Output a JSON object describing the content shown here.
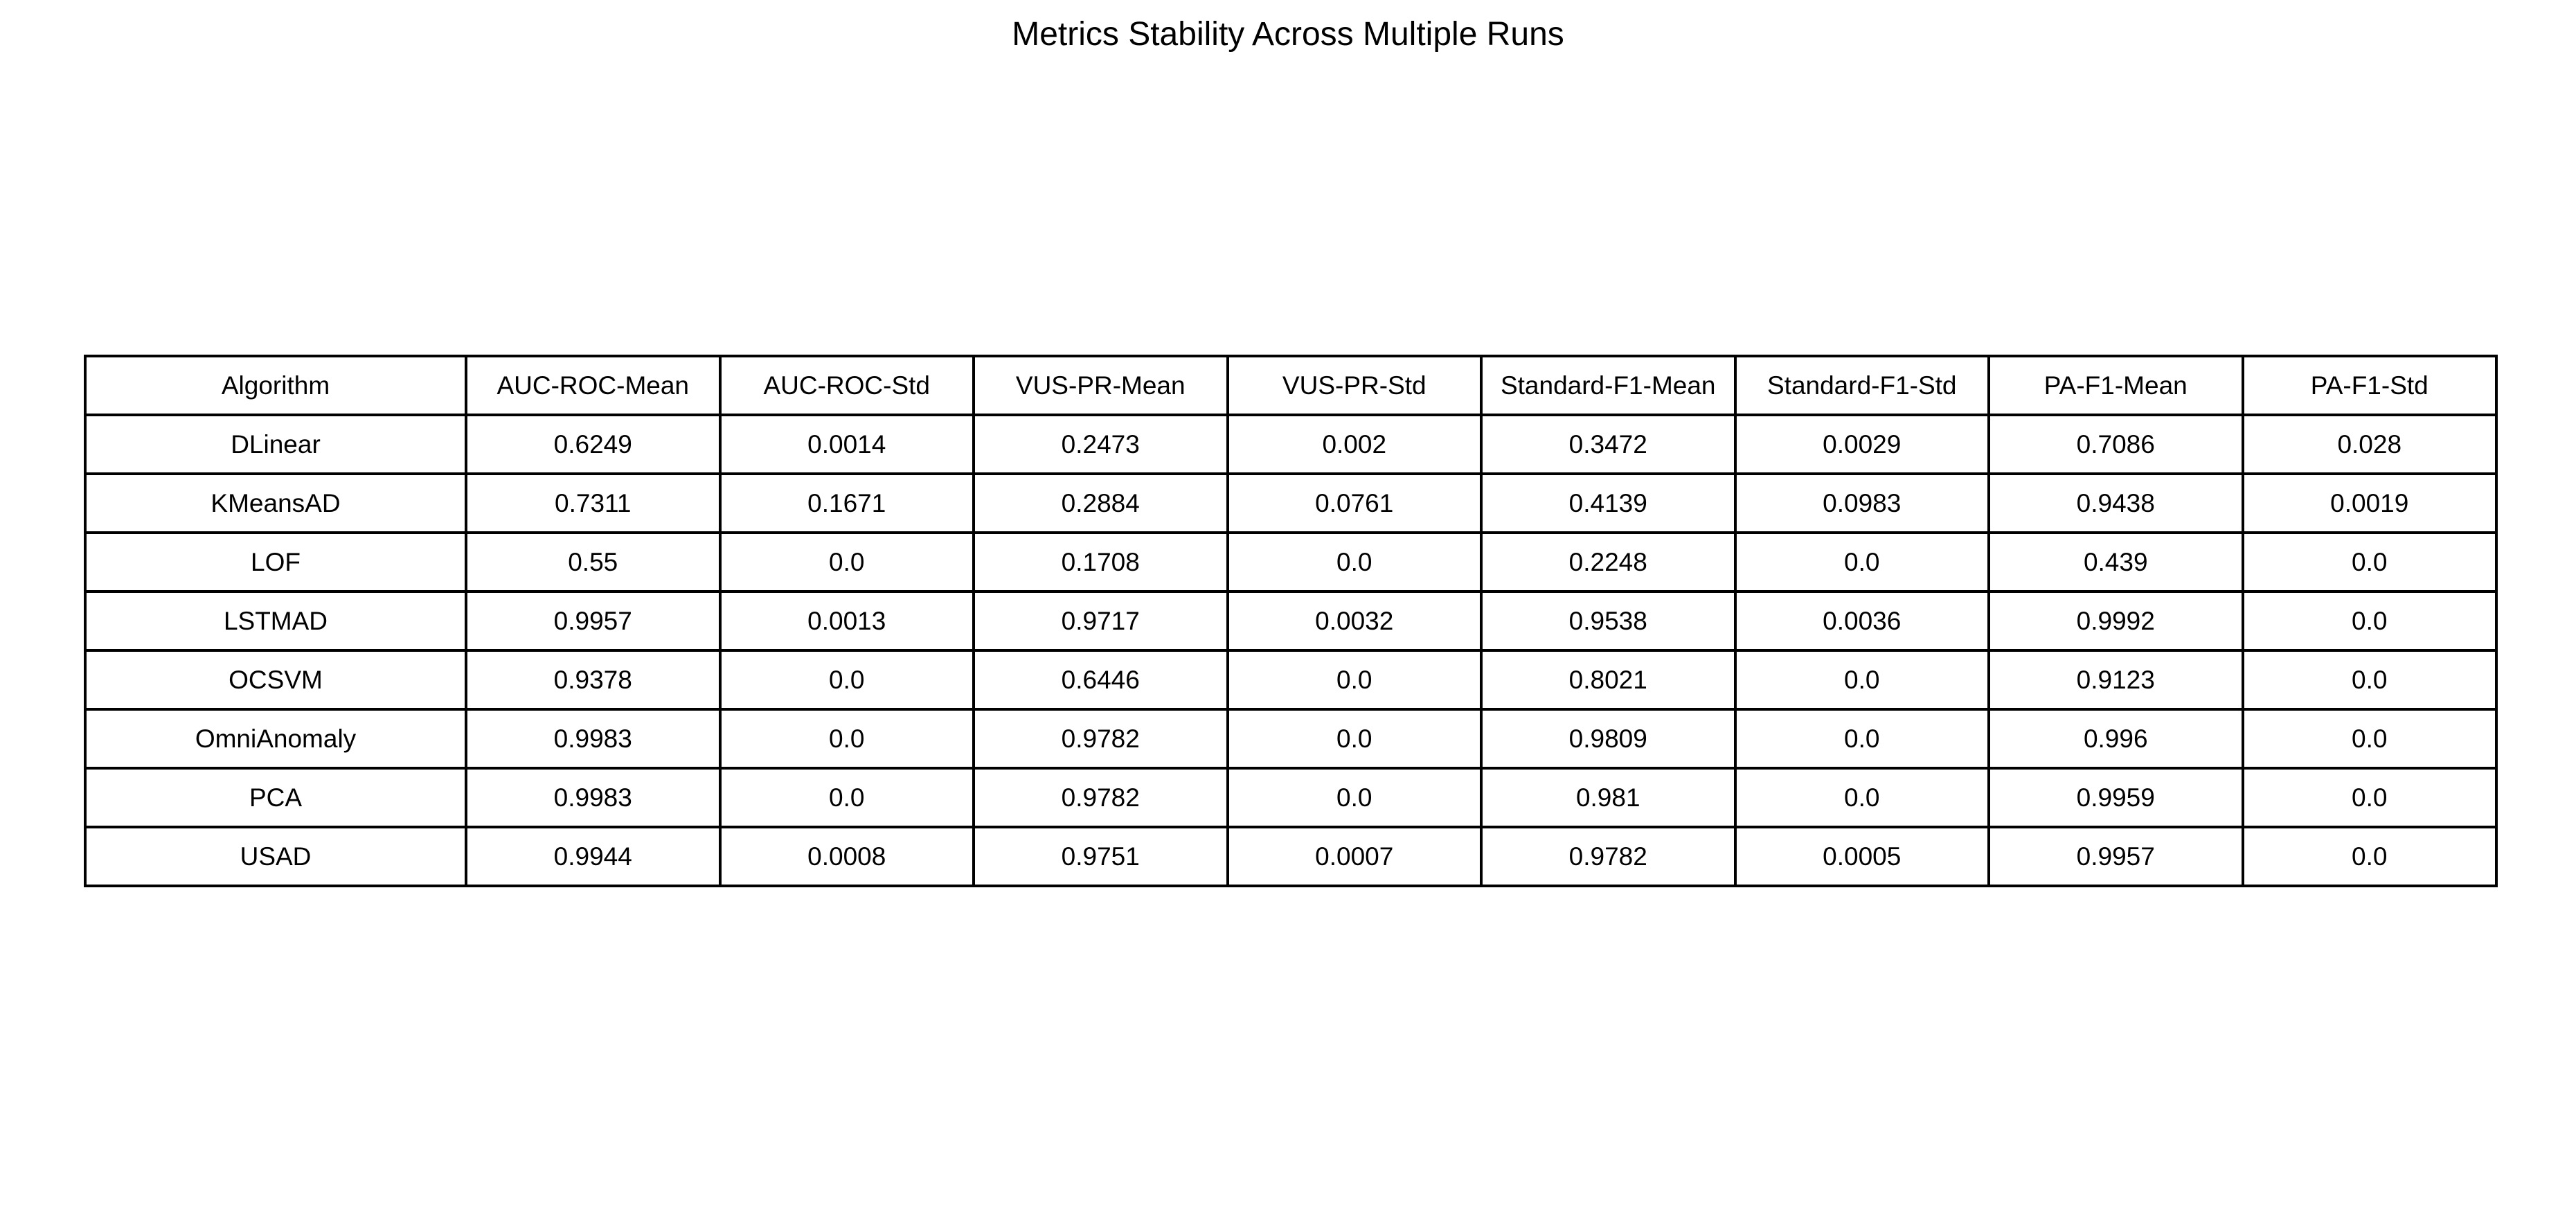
{
  "chart_data": {
    "type": "table",
    "title": "Metrics Stability Across Multiple Runs",
    "columns": [
      "Algorithm",
      "AUC-ROC-Mean",
      "AUC-ROC-Std",
      "VUS-PR-Mean",
      "VUS-PR-Std",
      "Standard-F1-Mean",
      "Standard-F1-Std",
      "PA-F1-Mean",
      "PA-F1-Std"
    ],
    "rows": [
      [
        "DLinear",
        "0.6249",
        "0.0014",
        "0.2473",
        "0.002",
        "0.3472",
        "0.0029",
        "0.7086",
        "0.028"
      ],
      [
        "KMeansAD",
        "0.7311",
        "0.1671",
        "0.2884",
        "0.0761",
        "0.4139",
        "0.0983",
        "0.9438",
        "0.0019"
      ],
      [
        "LOF",
        "0.55",
        "0.0",
        "0.1708",
        "0.0",
        "0.2248",
        "0.0",
        "0.439",
        "0.0"
      ],
      [
        "LSTMAD",
        "0.9957",
        "0.0013",
        "0.9717",
        "0.0032",
        "0.9538",
        "0.0036",
        "0.9992",
        "0.0"
      ],
      [
        "OCSVM",
        "0.9378",
        "0.0",
        "0.6446",
        "0.0",
        "0.8021",
        "0.0",
        "0.9123",
        "0.0"
      ],
      [
        "OmniAnomaly",
        "0.9983",
        "0.0",
        "0.9782",
        "0.0",
        "0.9809",
        "0.0",
        "0.996",
        "0.0"
      ],
      [
        "PCA",
        "0.9983",
        "0.0",
        "0.9782",
        "0.0",
        "0.981",
        "0.0",
        "0.9959",
        "0.0"
      ],
      [
        "USAD",
        "0.9944",
        "0.0008",
        "0.9751",
        "0.0007",
        "0.9782",
        "0.0005",
        "0.9957",
        "0.0"
      ]
    ],
    "grid": true,
    "border_color": "#000000",
    "background_color": "#ffffff"
  }
}
